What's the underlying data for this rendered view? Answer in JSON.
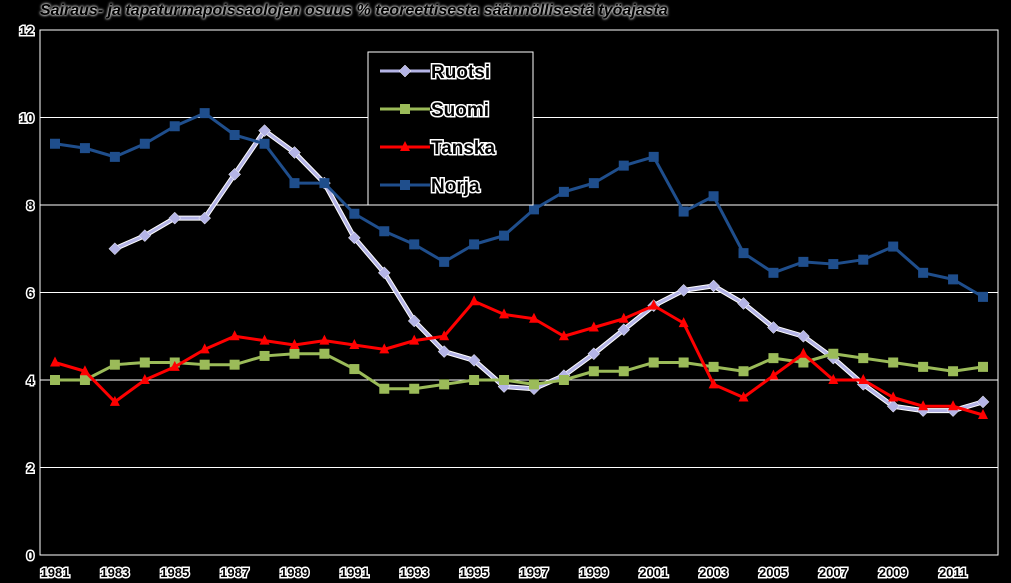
{
  "chart_data": {
    "type": "line",
    "title": "Sairaus- ja tapaturmapoissaolojen osuus % teoreettisesta säännöllisestä työajasta",
    "xlabel": "",
    "ylabel": "",
    "ylim": [
      0,
      12
    ],
    "yticks": [
      "0",
      "2",
      "4",
      "6",
      "8",
      "10",
      "12"
    ],
    "xlim": [
      1981,
      2013
    ],
    "xtick_labels": [
      "1981",
      "1983",
      "1985",
      "1987",
      "1989",
      "1991",
      "1993",
      "1995",
      "1997",
      "1999",
      "2001",
      "2003",
      "2005",
      "2007",
      "2009",
      "2011"
    ],
    "grid": true,
    "legend_position": "top-center",
    "series": [
      {
        "name": "Ruotsi",
        "color": "#b4b4e6",
        "marker": "diamond",
        "x": [
          1983,
          1984,
          1985,
          1986,
          1987,
          1988,
          1989,
          1990,
          1991,
          1992,
          1993,
          1994,
          1995,
          1996,
          1997,
          1998,
          1999,
          2000,
          2001,
          2002,
          2003,
          2004,
          2005,
          2006,
          2007,
          2008,
          2009,
          2010,
          2011,
          2012
        ],
        "values": [
          7.0,
          7.3,
          7.7,
          7.7,
          8.7,
          9.7,
          9.2,
          8.5,
          7.25,
          6.45,
          5.35,
          4.65,
          4.45,
          3.85,
          3.8,
          4.1,
          4.6,
          5.15,
          5.7,
          6.05,
          6.15,
          5.75,
          5.2,
          5.0,
          4.5,
          3.9,
          3.4,
          3.3,
          3.3,
          3.5
        ]
      },
      {
        "name": "Suomi",
        "color": "#9bbb59",
        "marker": "square",
        "x": [
          1981,
          1982,
          1983,
          1984,
          1985,
          1986,
          1987,
          1988,
          1989,
          1990,
          1991,
          1992,
          1993,
          1994,
          1995,
          1996,
          1997,
          1998,
          1999,
          2000,
          2001,
          2002,
          2003,
          2004,
          2005,
          2006,
          2007,
          2008,
          2009,
          2010,
          2011,
          2012
        ],
        "values": [
          4.0,
          4.0,
          4.35,
          4.4,
          4.4,
          4.35,
          4.35,
          4.55,
          4.6,
          4.6,
          4.25,
          3.8,
          3.8,
          3.9,
          4.0,
          4.0,
          3.9,
          4.0,
          4.2,
          4.2,
          4.4,
          4.4,
          4.3,
          4.2,
          4.5,
          4.4,
          4.6,
          4.5,
          4.4,
          4.3,
          4.2,
          4.3
        ]
      },
      {
        "name": "Tanska",
        "color": "#ff0000",
        "marker": "triangle",
        "x": [
          1981,
          1982,
          1983,
          1984,
          1985,
          1986,
          1987,
          1988,
          1989,
          1990,
          1991,
          1992,
          1993,
          1994,
          1995,
          1996,
          1997,
          1998,
          1999,
          2000,
          2001,
          2002,
          2003,
          2004,
          2005,
          2006,
          2007,
          2008,
          2009,
          2010,
          2011,
          2012
        ],
        "values": [
          4.4,
          4.2,
          3.5,
          4.0,
          4.3,
          4.7,
          5.0,
          4.9,
          4.8,
          4.9,
          4.8,
          4.7,
          4.9,
          5.0,
          5.8,
          5.5,
          5.4,
          5.0,
          5.2,
          5.4,
          5.7,
          5.3,
          3.9,
          3.6,
          4.1,
          4.6,
          4.0,
          4.0,
          3.6,
          3.4,
          3.4,
          3.2
        ]
      },
      {
        "name": "Norja",
        "color": "#1f4e8c",
        "marker": "square",
        "x": [
          1981,
          1982,
          1983,
          1984,
          1985,
          1986,
          1987,
          1988,
          1989,
          1990,
          1991,
          1992,
          1993,
          1994,
          1995,
          1996,
          1997,
          1998,
          1999,
          2000,
          2001,
          2002,
          2003,
          2004,
          2005,
          2006,
          2007,
          2008,
          2009,
          2010,
          2011,
          2012
        ],
        "values": [
          9.4,
          9.3,
          9.1,
          9.4,
          9.8,
          10.1,
          9.6,
          9.4,
          8.5,
          8.5,
          7.8,
          7.4,
          7.1,
          6.7,
          7.1,
          7.3,
          7.9,
          8.3,
          8.5,
          8.9,
          9.1,
          7.85,
          8.2,
          6.9,
          6.45,
          6.7,
          6.65,
          6.75,
          7.05,
          6.45,
          6.3,
          5.9
        ]
      }
    ]
  }
}
